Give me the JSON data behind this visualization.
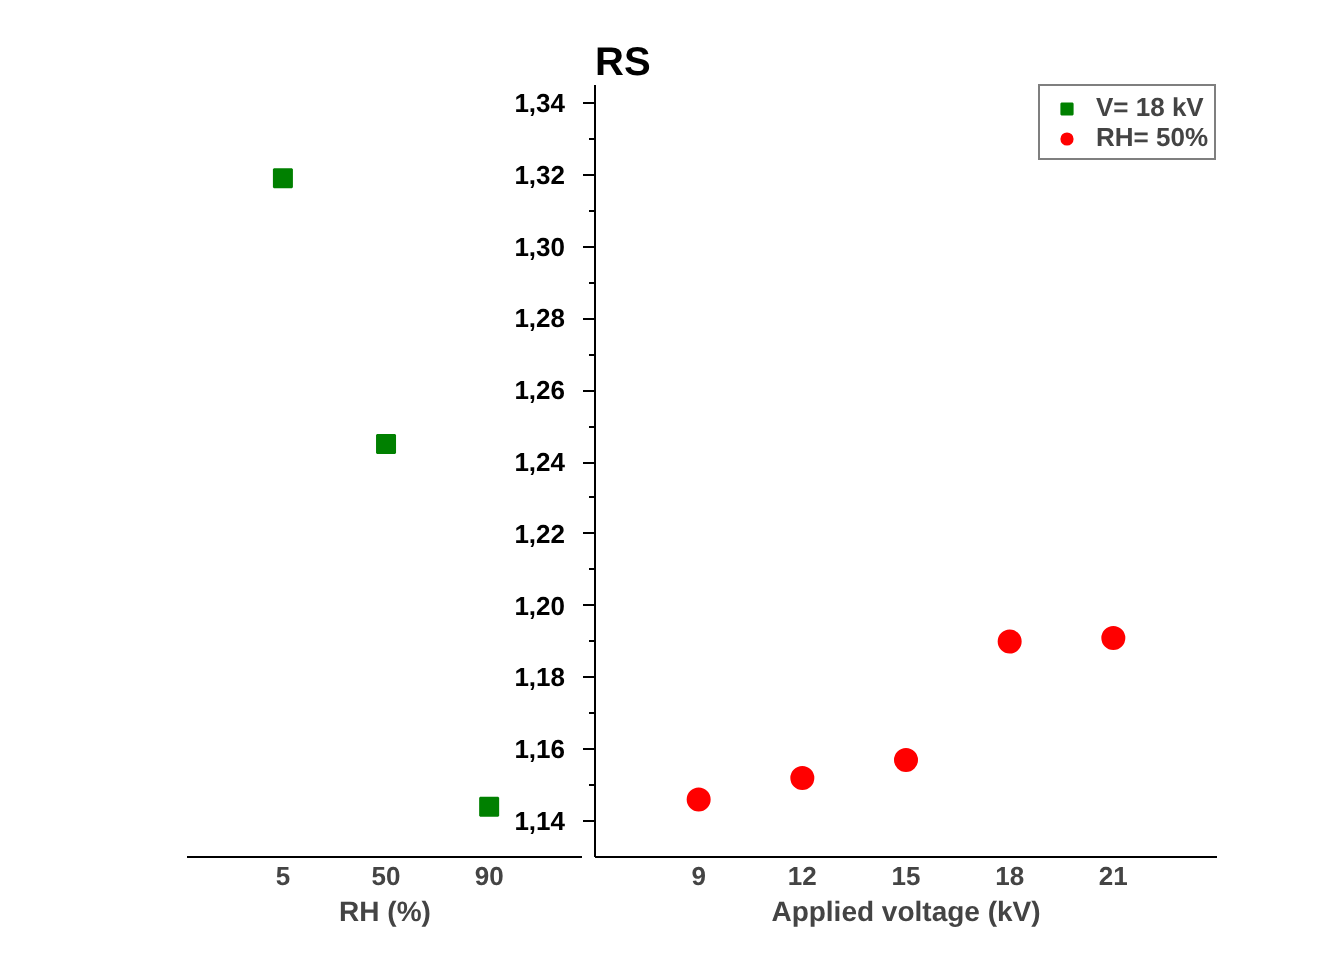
{
  "chart_data": [
    {
      "type": "scatter",
      "xlabel": "RH (%)",
      "categories": [
        "5",
        "50",
        "90"
      ],
      "ylim": [
        1.13,
        1.345
      ],
      "tick_labels": "x",
      "marker": "square",
      "legend": "top right",
      "grid": false,
      "series": [
        {
          "name": "V= 18 kV",
          "color": "#008000",
          "values": [
            1.319,
            1.245,
            1.144
          ]
        }
      ]
    },
    {
      "type": "scatter",
      "title": "RS",
      "xlabel": "Applied voltage (kV)",
      "x": [
        9,
        12,
        15,
        18,
        21
      ],
      "xlim": [
        6,
        24
      ],
      "xticks": [
        9,
        12,
        15,
        18,
        21
      ],
      "ylim": [
        1.13,
        1.345
      ],
      "yticks": [
        {
          "value": 1.14,
          "label": "1,14"
        },
        {
          "value": 1.16,
          "label": "1,16"
        },
        {
          "value": 1.18,
          "label": "1,18"
        },
        {
          "value": 1.2,
          "label": "1,20"
        },
        {
          "value": 1.22,
          "label": "1,22"
        },
        {
          "value": 1.24,
          "label": "1,24"
        },
        {
          "value": 1.26,
          "label": "1,26"
        },
        {
          "value": 1.28,
          "label": "1,28"
        },
        {
          "value": 1.3,
          "label": "1,30"
        },
        {
          "value": 1.32,
          "label": "1,32"
        },
        {
          "value": 1.34,
          "label": "1,34"
        }
      ],
      "marker": "circle",
      "legend": "top right",
      "grid": false,
      "series": [
        {
          "name": "RH= 50%",
          "color": "#ff0000",
          "values": [
            1.146,
            1.152,
            1.157,
            1.19,
            1.191
          ]
        }
      ]
    }
  ]
}
